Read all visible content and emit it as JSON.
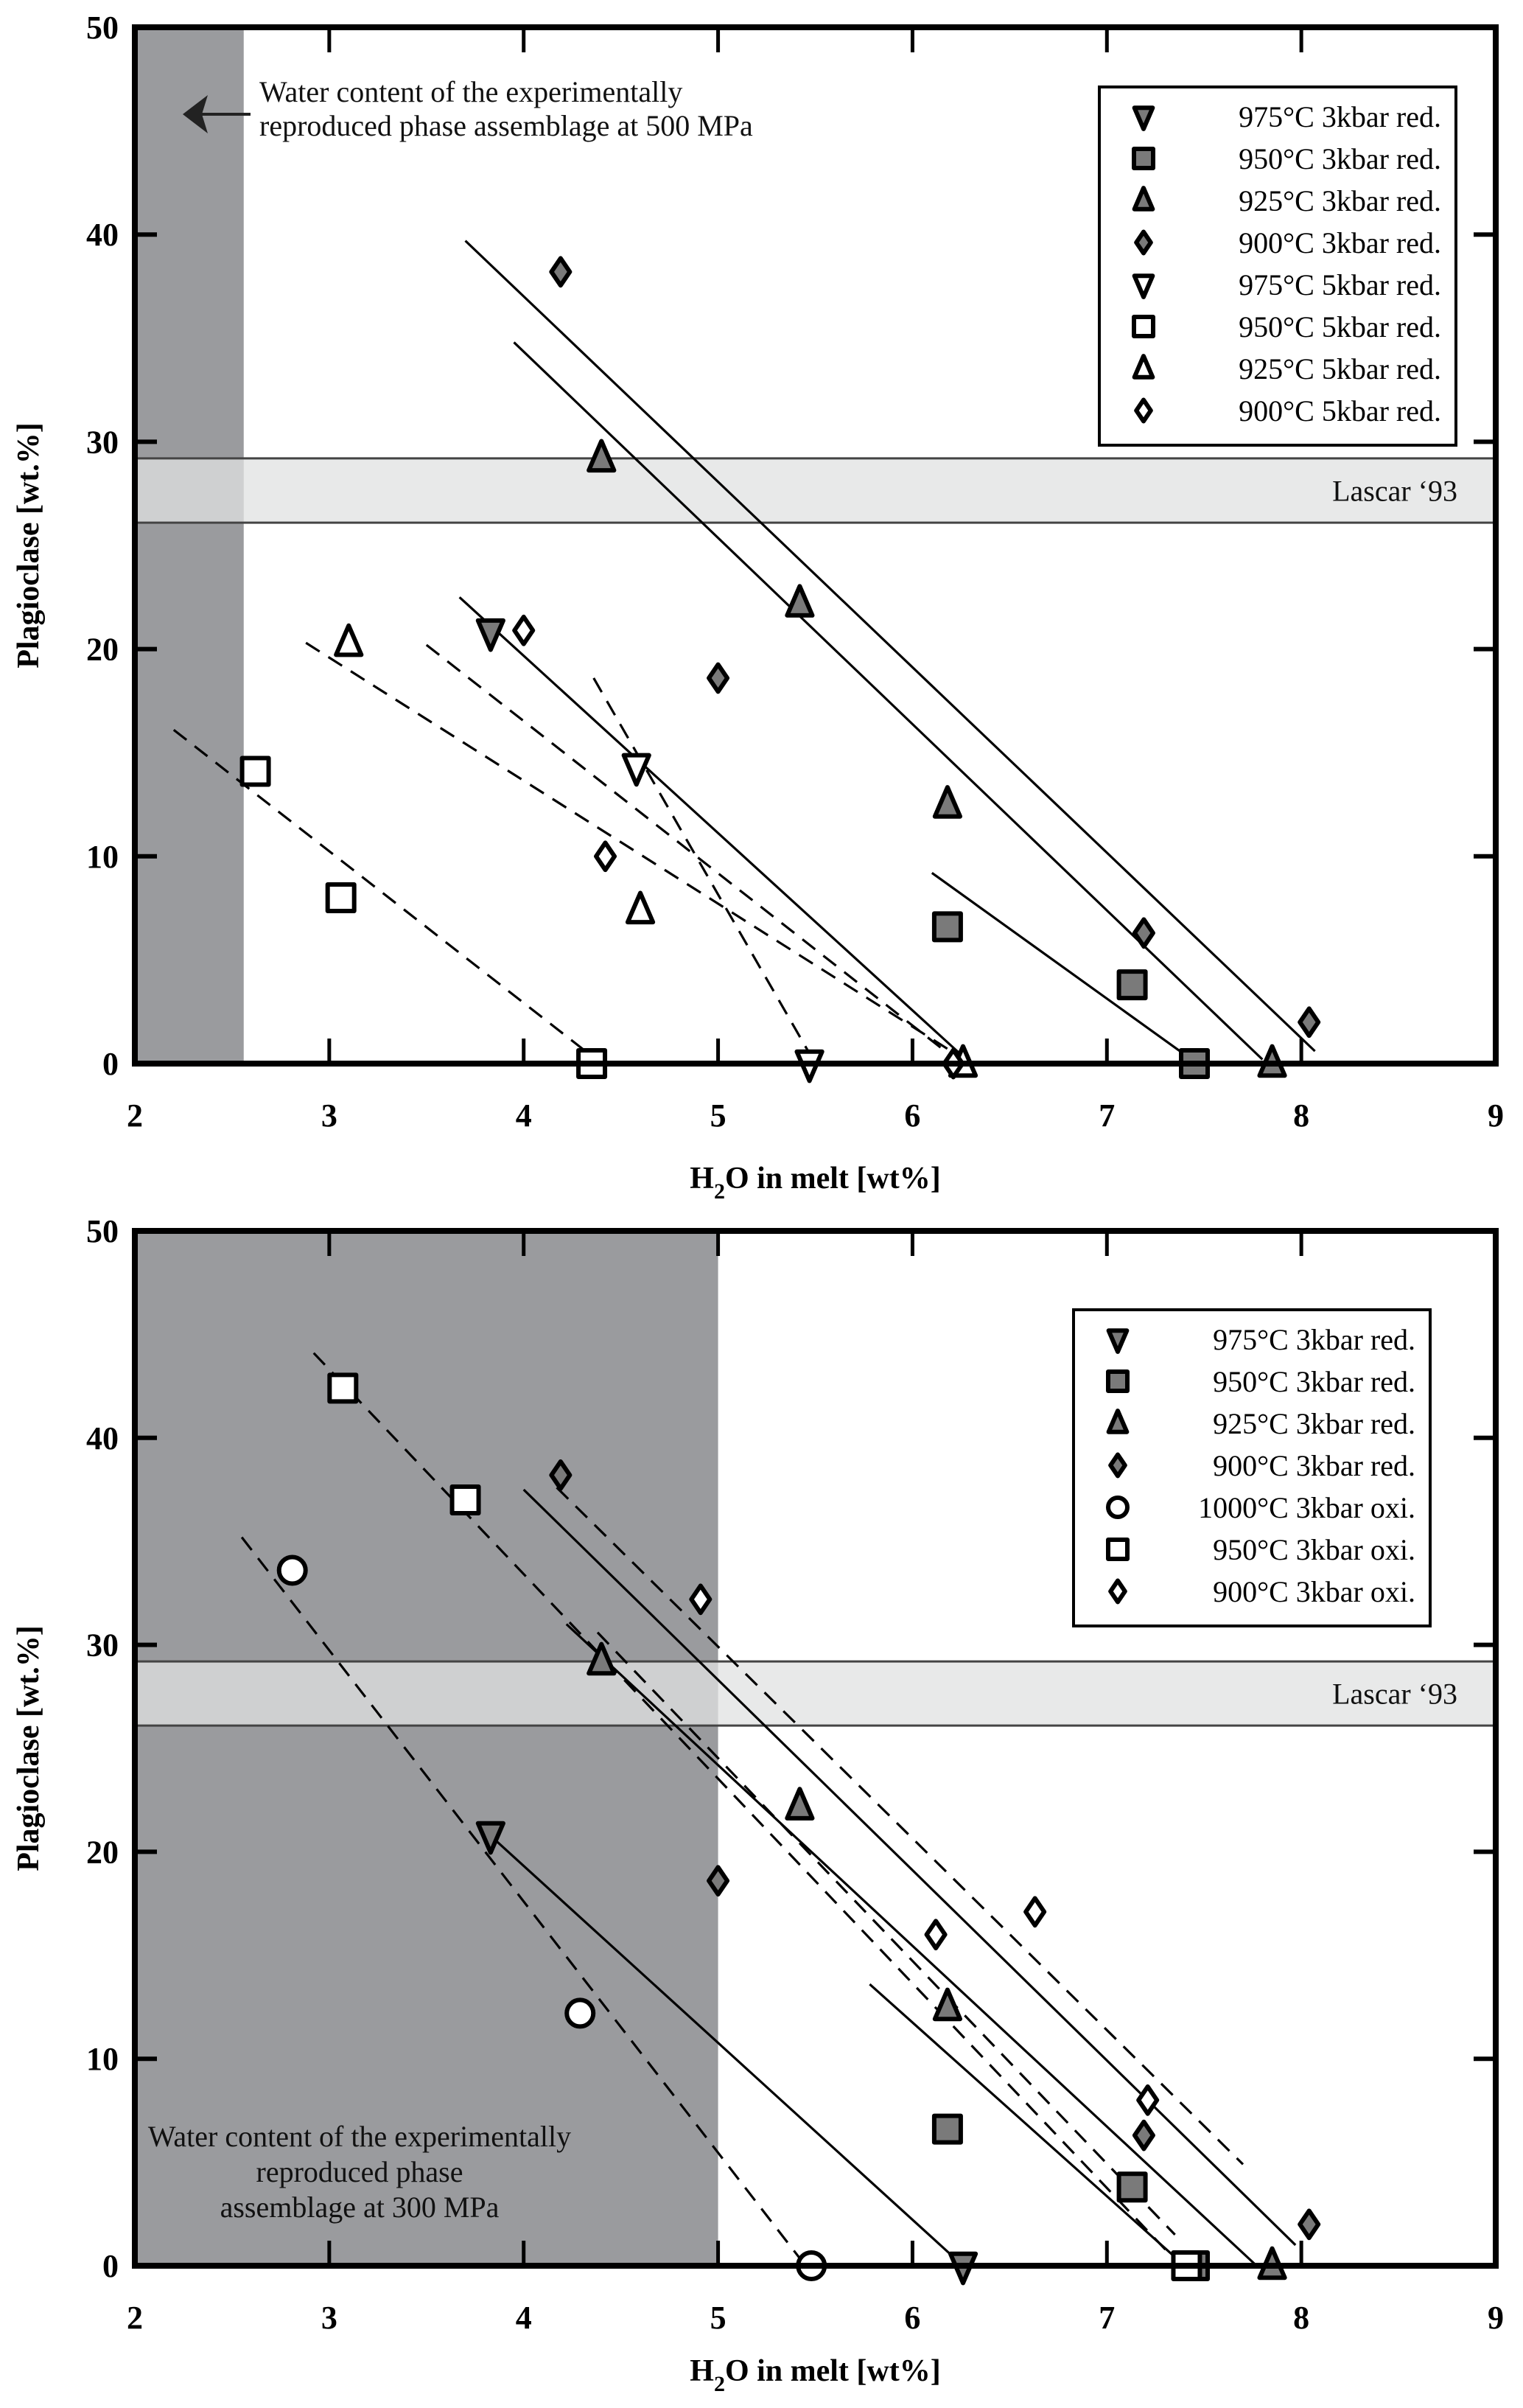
{
  "chart_data": [
    {
      "type": "scatter",
      "xlabel_main": "H",
      "xlabel_sub": "2",
      "xlabel_rest": "O in melt [wt%]",
      "ylabel": "Plagioclase [wt.%]",
      "xlim": [
        2,
        9
      ],
      "ylim": [
        0,
        50
      ],
      "xticks": [
        "2",
        "3",
        "4",
        "5",
        "6",
        "7",
        "8",
        "9"
      ],
      "yticks": [
        "0",
        "10",
        "20",
        "30",
        "40",
        "50"
      ],
      "grid": false,
      "legend_position": "top-right",
      "shaded_region": {
        "x_from": 2,
        "x_to": 2.56,
        "color": "#9a9b9e"
      },
      "annotation": {
        "lines": [
          "Water content of the experimentally",
          "reproduced phase assemblage at 500 MPa"
        ],
        "arrow": true
      },
      "reference_band": {
        "label": "Lascar ‘93",
        "y_from": 26.1,
        "y_to": 29.2,
        "color": "#e0e1e2"
      },
      "series": [
        {
          "name": "975°C 3kbar red.",
          "marker": "triangle-down",
          "fill": "#7a7a7a",
          "points": [
            [
              3.83,
              20.8
            ]
          ]
        },
        {
          "name": "950°C 3kbar red.",
          "marker": "square",
          "fill": "#7a7a7a",
          "points": [
            [
              6.18,
              6.6
            ],
            [
              7.13,
              3.8
            ],
            [
              7.45,
              0
            ]
          ]
        },
        {
          "name": "925°C 3kbar red.",
          "marker": "triangle-up",
          "fill": "#7a7a7a",
          "points": [
            [
              4.4,
              29.2
            ],
            [
              5.42,
              22.2
            ],
            [
              6.18,
              12.5
            ],
            [
              7.85,
              0
            ]
          ]
        },
        {
          "name": "900°C 3kbar red.",
          "marker": "diamond",
          "fill": "#7a7a7a",
          "points": [
            [
              4.19,
              38.2
            ],
            [
              5.0,
              18.6
            ],
            [
              7.19,
              6.3
            ],
            [
              8.04,
              2.0
            ]
          ]
        },
        {
          "name": "975°C 5kbar red.",
          "marker": "triangle-down",
          "fill": "#ffffff",
          "points": [
            [
              4.58,
              14.3
            ],
            [
              5.47,
              0
            ]
          ]
        },
        {
          "name": "950°C 5kbar red.",
          "marker": "square",
          "fill": "#ffffff",
          "points": [
            [
              2.62,
              14.1
            ],
            [
              3.06,
              8.0
            ],
            [
              4.35,
              0
            ]
          ]
        },
        {
          "name": "925°C 5kbar red.",
          "marker": "triangle-up",
          "fill": "#ffffff",
          "points": [
            [
              3.1,
              20.3
            ],
            [
              4.6,
              7.4
            ],
            [
              6.26,
              0
            ]
          ]
        },
        {
          "name": "900°C 5kbar red.",
          "marker": "diamond",
          "fill": "#ffffff",
          "points": [
            [
              4.0,
              20.9
            ],
            [
              4.42,
              10.0
            ],
            [
              6.21,
              0
            ]
          ]
        }
      ],
      "fit_lines": [
        {
          "style": "solid",
          "from": [
            3.7,
            39.7
          ],
          "to": [
            8.07,
            0.6
          ]
        },
        {
          "style": "solid",
          "from": [
            3.95,
            34.8
          ],
          "to": [
            7.8,
            0.2
          ]
        },
        {
          "style": "solid",
          "from": [
            3.67,
            22.5
          ],
          "to": [
            6.3,
            0
          ]
        },
        {
          "style": "solid",
          "from": [
            6.1,
            9.2
          ],
          "to": [
            7.45,
            0.1
          ]
        },
        {
          "style": "dashed",
          "from": [
            2.2,
            16.1
          ],
          "to": [
            4.4,
            0
          ]
        },
        {
          "style": "dashed",
          "from": [
            2.88,
            20.3
          ],
          "to": [
            6.3,
            0
          ]
        },
        {
          "style": "dashed",
          "from": [
            3.5,
            20.2
          ],
          "to": [
            6.25,
            0
          ]
        },
        {
          "style": "dashed",
          "from": [
            4.36,
            18.6
          ],
          "to": [
            5.5,
            0
          ]
        }
      ]
    },
    {
      "type": "scatter",
      "xlabel_main": "H",
      "xlabel_sub": "2",
      "xlabel_rest": "O in melt [wt%]",
      "ylabel": "Plagioclase [wt.%]",
      "xlim": [
        2,
        9
      ],
      "ylim": [
        0,
        50
      ],
      "xticks": [
        "2",
        "3",
        "4",
        "5",
        "6",
        "7",
        "8",
        "9"
      ],
      "yticks": [
        "0",
        "10",
        "20",
        "30",
        "40",
        "50"
      ],
      "grid": false,
      "legend_position": "top-right",
      "shaded_region": {
        "x_from": 2,
        "x_to": 5.0,
        "color": "#9a9b9e"
      },
      "annotation": {
        "lines": [
          "Water content of the experimentally",
          "reproduced phase",
          "assemblage at 300 MPa"
        ],
        "arrow": false
      },
      "reference_band": {
        "label": "Lascar ‘93",
        "y_from": 26.1,
        "y_to": 29.2,
        "color": "#e0e1e2"
      },
      "series": [
        {
          "name": "975°C 3kbar red.",
          "marker": "triangle-down",
          "fill": "#7a7a7a",
          "points": [
            [
              3.83,
              20.8
            ],
            [
              6.26,
              0
            ]
          ]
        },
        {
          "name": "950°C 3kbar red.",
          "marker": "square",
          "fill": "#7a7a7a",
          "points": [
            [
              6.18,
              6.6
            ],
            [
              7.13,
              3.8
            ],
            [
              7.45,
              0
            ]
          ]
        },
        {
          "name": "925°C 3kbar red.",
          "marker": "triangle-up",
          "fill": "#7a7a7a",
          "points": [
            [
              4.4,
              29.2
            ],
            [
              5.42,
              22.2
            ],
            [
              6.18,
              12.5
            ],
            [
              7.85,
              0
            ]
          ]
        },
        {
          "name": "900°C 3kbar red.",
          "marker": "diamond",
          "fill": "#7a7a7a",
          "points": [
            [
              4.19,
              38.2
            ],
            [
              5.0,
              18.6
            ],
            [
              7.19,
              6.3
            ],
            [
              8.04,
              2.0
            ]
          ]
        },
        {
          "name": "1000°C 3kbar oxi.",
          "marker": "circle",
          "fill": "#ffffff",
          "points": [
            [
              2.81,
              33.6
            ],
            [
              4.29,
              12.2
            ],
            [
              5.48,
              0
            ]
          ]
        },
        {
          "name": "950°C 3kbar oxi.",
          "marker": "square",
          "fill": "#ffffff",
          "points": [
            [
              3.07,
              42.4
            ],
            [
              3.7,
              37.0
            ],
            [
              7.41,
              0
            ]
          ]
        },
        {
          "name": "900°C 3kbar oxi.",
          "marker": "diamond",
          "fill": "#ffffff",
          "points": [
            [
              4.91,
              32.2
            ],
            [
              6.12,
              16.0
            ],
            [
              6.63,
              17.1
            ],
            [
              7.21,
              8.0
            ]
          ]
        }
      ],
      "fit_lines": [
        {
          "style": "solid",
          "from": [
            4.0,
            37.5
          ],
          "to": [
            7.97,
            1.0
          ]
        },
        {
          "style": "solid",
          "from": [
            4.22,
            31.0
          ],
          "to": [
            7.77,
            0
          ]
        },
        {
          "style": "solid",
          "from": [
            3.78,
            21.2
          ],
          "to": [
            6.26,
            0
          ]
        },
        {
          "style": "solid",
          "from": [
            5.78,
            13.6
          ],
          "to": [
            7.4,
            0
          ]
        },
        {
          "style": "dashed",
          "from": [
            2.55,
            35.2
          ],
          "to": [
            5.45,
            0
          ]
        },
        {
          "style": "dashed",
          "from": [
            2.92,
            44.1
          ],
          "to": [
            7.38,
            0
          ]
        },
        {
          "style": "dashed",
          "from": [
            4.17,
            37.6
          ],
          "to": [
            7.7,
            4.9
          ]
        },
        {
          "style": "dashed",
          "from": [
            4.38,
            30.6
          ],
          "to": [
            7.35,
            1.5
          ]
        }
      ]
    }
  ]
}
